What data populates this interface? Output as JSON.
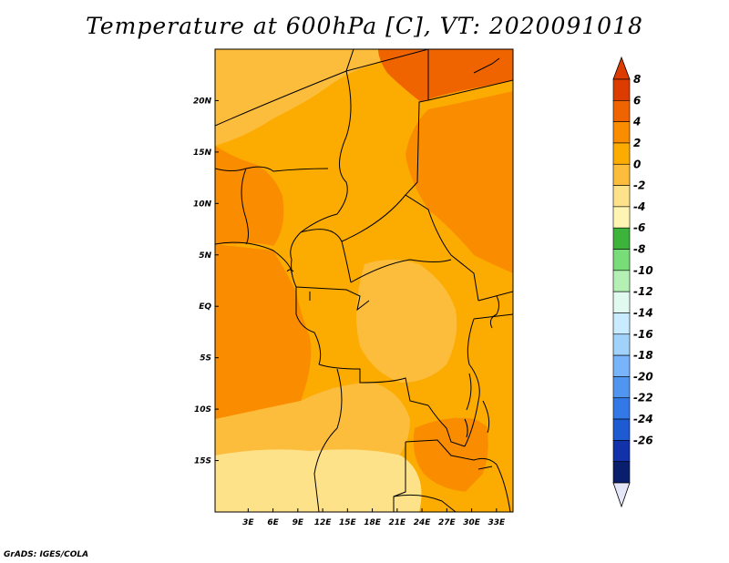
{
  "title": "Temperature at 600hPa [C], VT: 2020091018",
  "credit": "GrADS: IGES/COLA",
  "map": {
    "lon_range": [
      -1,
      35
    ],
    "lat_range": [
      -20,
      25
    ],
    "x_ticks": [
      {
        "lon": 3,
        "label": "3E"
      },
      {
        "lon": 6,
        "label": "6E"
      },
      {
        "lon": 9,
        "label": "9E"
      },
      {
        "lon": 12,
        "label": "12E"
      },
      {
        "lon": 15,
        "label": "15E"
      },
      {
        "lon": 18,
        "label": "18E"
      },
      {
        "lon": 21,
        "label": "21E"
      },
      {
        "lon": 24,
        "label": "24E"
      },
      {
        "lon": 27,
        "label": "27E"
      },
      {
        "lon": 30,
        "label": "30E"
      },
      {
        "lon": 33,
        "label": "33E"
      }
    ],
    "y_ticks": [
      {
        "lat": 20,
        "label": "20N"
      },
      {
        "lat": 15,
        "label": "15N"
      },
      {
        "lat": 10,
        "label": "10N"
      },
      {
        "lat": 5,
        "label": "5N"
      },
      {
        "lat": 0,
        "label": "EQ"
      },
      {
        "lat": -5,
        "label": "5S"
      },
      {
        "lat": -10,
        "label": "10S"
      },
      {
        "lat": -15,
        "label": "15S"
      }
    ]
  },
  "colorbar": {
    "levels": [
      "8",
      "6",
      "4",
      "2",
      "0",
      "-2",
      "-4",
      "-6",
      "-8",
      "-10",
      "-12",
      "-14",
      "-16",
      "-18",
      "-20",
      "-22",
      "-24",
      "-26"
    ],
    "colors": [
      "#dc3c00",
      "#f06400",
      "#fa8c00",
      "#fcab00",
      "#fdbd3c",
      "#fee28a",
      "#fef5b4",
      "#3cb43c",
      "#78dc78",
      "#b4f0b4",
      "#e1faf0",
      "#c8ebff",
      "#a0d2fa",
      "#78b4fa",
      "#5096f0",
      "#3278e6",
      "#1e5ad2",
      "#1232aa",
      "#0a1e6e"
    ],
    "top_arrow_color": "#dc3c00",
    "bottom_arrow_color": "#e6e6fa"
  },
  "field": {
    "background_color": "#fcab00",
    "regions": [
      {
        "name": "sahara-northwest",
        "color": "#fdbd3c"
      },
      {
        "name": "libya-southeast",
        "color": "#f06400"
      },
      {
        "name": "sudan-east",
        "color": "#fa8c00"
      },
      {
        "name": "nigeria-south",
        "color": "#fa8c00"
      },
      {
        "name": "gulf-ocean",
        "color": "#fa8c00"
      },
      {
        "name": "drc-center",
        "color": "#fdbd3c"
      },
      {
        "name": "angola-south",
        "color": "#fdbd3c"
      },
      {
        "name": "namibia-south",
        "color": "#fee28a"
      },
      {
        "name": "zambia-east",
        "color": "#fa8c00"
      },
      {
        "name": "mozambique",
        "color": "#fcab00"
      }
    ]
  }
}
